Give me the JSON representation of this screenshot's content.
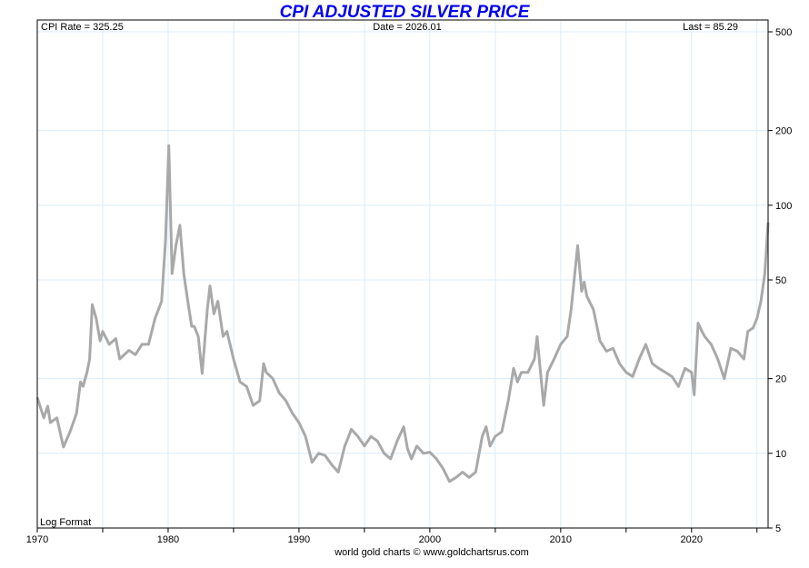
{
  "chart_data": {
    "type": "line",
    "title": "CPI ADJUSTED SILVER PRICE",
    "header": {
      "cpi_rate": "CPI Rate = 325.25",
      "date": "Date = 2026.01",
      "last": "Last = 85.29"
    },
    "format_label": "Log Format",
    "footer": "world gold charts © www.goldchartsrus.com",
    "xlabel": "",
    "ylabel": "",
    "xlim": [
      1970,
      2025.85
    ],
    "ylim": [
      5,
      558
    ],
    "yscale": "log",
    "x_ticks": [
      "1970",
      "1980",
      "1990",
      "2000",
      "2010",
      "2020"
    ],
    "x_tick_values": [
      1970,
      1980,
      1990,
      2000,
      2010,
      2020
    ],
    "x_minor_ticks": [
      1975,
      1985,
      1995,
      2005,
      2015,
      2025
    ],
    "y_ticks": [
      "5",
      "10",
      "20",
      "50",
      "100",
      "200",
      "500"
    ],
    "y_tick_values": [
      5,
      10,
      20,
      50,
      100,
      200,
      500
    ],
    "grid": true,
    "line_color": "#a9a9a9",
    "title_color": "#0000ee",
    "grid_color": "#dcecf8",
    "series": [
      {
        "name": "CPI adjusted silver",
        "points": [
          [
            1970.0,
            16.8
          ],
          [
            1970.5,
            13.9
          ],
          [
            1970.8,
            15.5
          ],
          [
            1971.0,
            13.3
          ],
          [
            1971.5,
            13.9
          ],
          [
            1972.0,
            10.6
          ],
          [
            1972.5,
            12.2
          ],
          [
            1973.0,
            14.5
          ],
          [
            1973.3,
            19.4
          ],
          [
            1973.5,
            18.6
          ],
          [
            1973.8,
            21.2
          ],
          [
            1974.0,
            24.0
          ],
          [
            1974.2,
            39.8
          ],
          [
            1974.5,
            35
          ],
          [
            1974.8,
            28.4
          ],
          [
            1975.0,
            31
          ],
          [
            1975.5,
            27.5
          ],
          [
            1976.0,
            29
          ],
          [
            1976.3,
            24
          ],
          [
            1977.0,
            26
          ],
          [
            1977.5,
            25
          ],
          [
            1978.0,
            27.5
          ],
          [
            1978.5,
            27.5
          ],
          [
            1979.0,
            35
          ],
          [
            1979.5,
            41
          ],
          [
            1979.8,
            72
          ],
          [
            1980.05,
            174
          ],
          [
            1980.3,
            53
          ],
          [
            1980.6,
            69
          ],
          [
            1980.9,
            83
          ],
          [
            1981.2,
            53
          ],
          [
            1981.5,
            41
          ],
          [
            1981.8,
            32.5
          ],
          [
            1982.0,
            32.5
          ],
          [
            1982.3,
            29.6
          ],
          [
            1982.6,
            21
          ],
          [
            1983.0,
            38
          ],
          [
            1983.2,
            47.3
          ],
          [
            1983.5,
            36.5
          ],
          [
            1983.8,
            41
          ],
          [
            1984.2,
            29.6
          ],
          [
            1984.5,
            31
          ],
          [
            1985.0,
            24
          ],
          [
            1985.5,
            19.4
          ],
          [
            1986.0,
            18.6
          ],
          [
            1986.5,
            15.6
          ],
          [
            1987.0,
            16.3
          ],
          [
            1987.3,
            23
          ],
          [
            1987.5,
            21.2
          ],
          [
            1988.0,
            20
          ],
          [
            1988.5,
            17.5
          ],
          [
            1989.0,
            16.3
          ],
          [
            1989.5,
            14.5
          ],
          [
            1990.0,
            13.3
          ],
          [
            1990.5,
            11.7
          ],
          [
            1991.0,
            9.2
          ],
          [
            1991.5,
            10
          ],
          [
            1992.0,
            9.8
          ],
          [
            1992.5,
            9.0
          ],
          [
            1993.0,
            8.4
          ],
          [
            1993.5,
            10.7
          ],
          [
            1993.8,
            11.7
          ],
          [
            1994.0,
            12.5
          ],
          [
            1994.5,
            11.7
          ],
          [
            1995.0,
            10.7
          ],
          [
            1995.5,
            11.7
          ],
          [
            1996.0,
            11.2
          ],
          [
            1996.5,
            10
          ],
          [
            1997.0,
            9.5
          ],
          [
            1997.5,
            11.2
          ],
          [
            1998.0,
            12.8
          ],
          [
            1998.3,
            10.4
          ],
          [
            1998.6,
            9.5
          ],
          [
            1999.0,
            10.7
          ],
          [
            1999.5,
            10
          ],
          [
            2000.0,
            10.1
          ],
          [
            2000.5,
            9.5
          ],
          [
            2001.0,
            8.7
          ],
          [
            2001.5,
            7.7
          ],
          [
            2002.0,
            8.0
          ],
          [
            2002.5,
            8.4
          ],
          [
            2003.0,
            8.0
          ],
          [
            2003.5,
            8.4
          ],
          [
            2004.0,
            11.7
          ],
          [
            2004.3,
            12.8
          ],
          [
            2004.6,
            10.7
          ],
          [
            2005.0,
            11.7
          ],
          [
            2005.5,
            12.2
          ],
          [
            2006.0,
            16.3
          ],
          [
            2006.4,
            22
          ],
          [
            2006.7,
            19.4
          ],
          [
            2007.0,
            21.2
          ],
          [
            2007.5,
            21.2
          ],
          [
            2008.0,
            24
          ],
          [
            2008.2,
            29.6
          ],
          [
            2008.7,
            15.6
          ],
          [
            2009.0,
            21.2
          ],
          [
            2009.5,
            24
          ],
          [
            2010.0,
            27.5
          ],
          [
            2010.5,
            29.6
          ],
          [
            2010.8,
            38
          ],
          [
            2011.3,
            68.7
          ],
          [
            2011.6,
            45
          ],
          [
            2011.8,
            49
          ],
          [
            2012.0,
            43
          ],
          [
            2012.5,
            38
          ],
          [
            2013.0,
            28.4
          ],
          [
            2013.5,
            25.8
          ],
          [
            2014.0,
            26.5
          ],
          [
            2014.5,
            23
          ],
          [
            2015.0,
            21.2
          ],
          [
            2015.5,
            20.4
          ],
          [
            2016.0,
            24
          ],
          [
            2016.5,
            27.5
          ],
          [
            2017.0,
            23
          ],
          [
            2017.5,
            22
          ],
          [
            2018.0,
            21.2
          ],
          [
            2018.5,
            20.4
          ],
          [
            2019.0,
            18.6
          ],
          [
            2019.5,
            22
          ],
          [
            2020.0,
            21.2
          ],
          [
            2020.2,
            17.2
          ],
          [
            2020.5,
            33.5
          ],
          [
            2020.8,
            31
          ],
          [
            2021.0,
            29.6
          ],
          [
            2021.5,
            27.5
          ],
          [
            2022.0,
            24
          ],
          [
            2022.5,
            20
          ],
          [
            2023.0,
            26.5
          ],
          [
            2023.5,
            25.8
          ],
          [
            2024.0,
            24
          ],
          [
            2024.3,
            31
          ],
          [
            2024.7,
            32
          ],
          [
            2025.0,
            35
          ],
          [
            2025.3,
            41
          ],
          [
            2025.6,
            53
          ],
          [
            2025.85,
            85.29
          ]
        ]
      }
    ]
  }
}
